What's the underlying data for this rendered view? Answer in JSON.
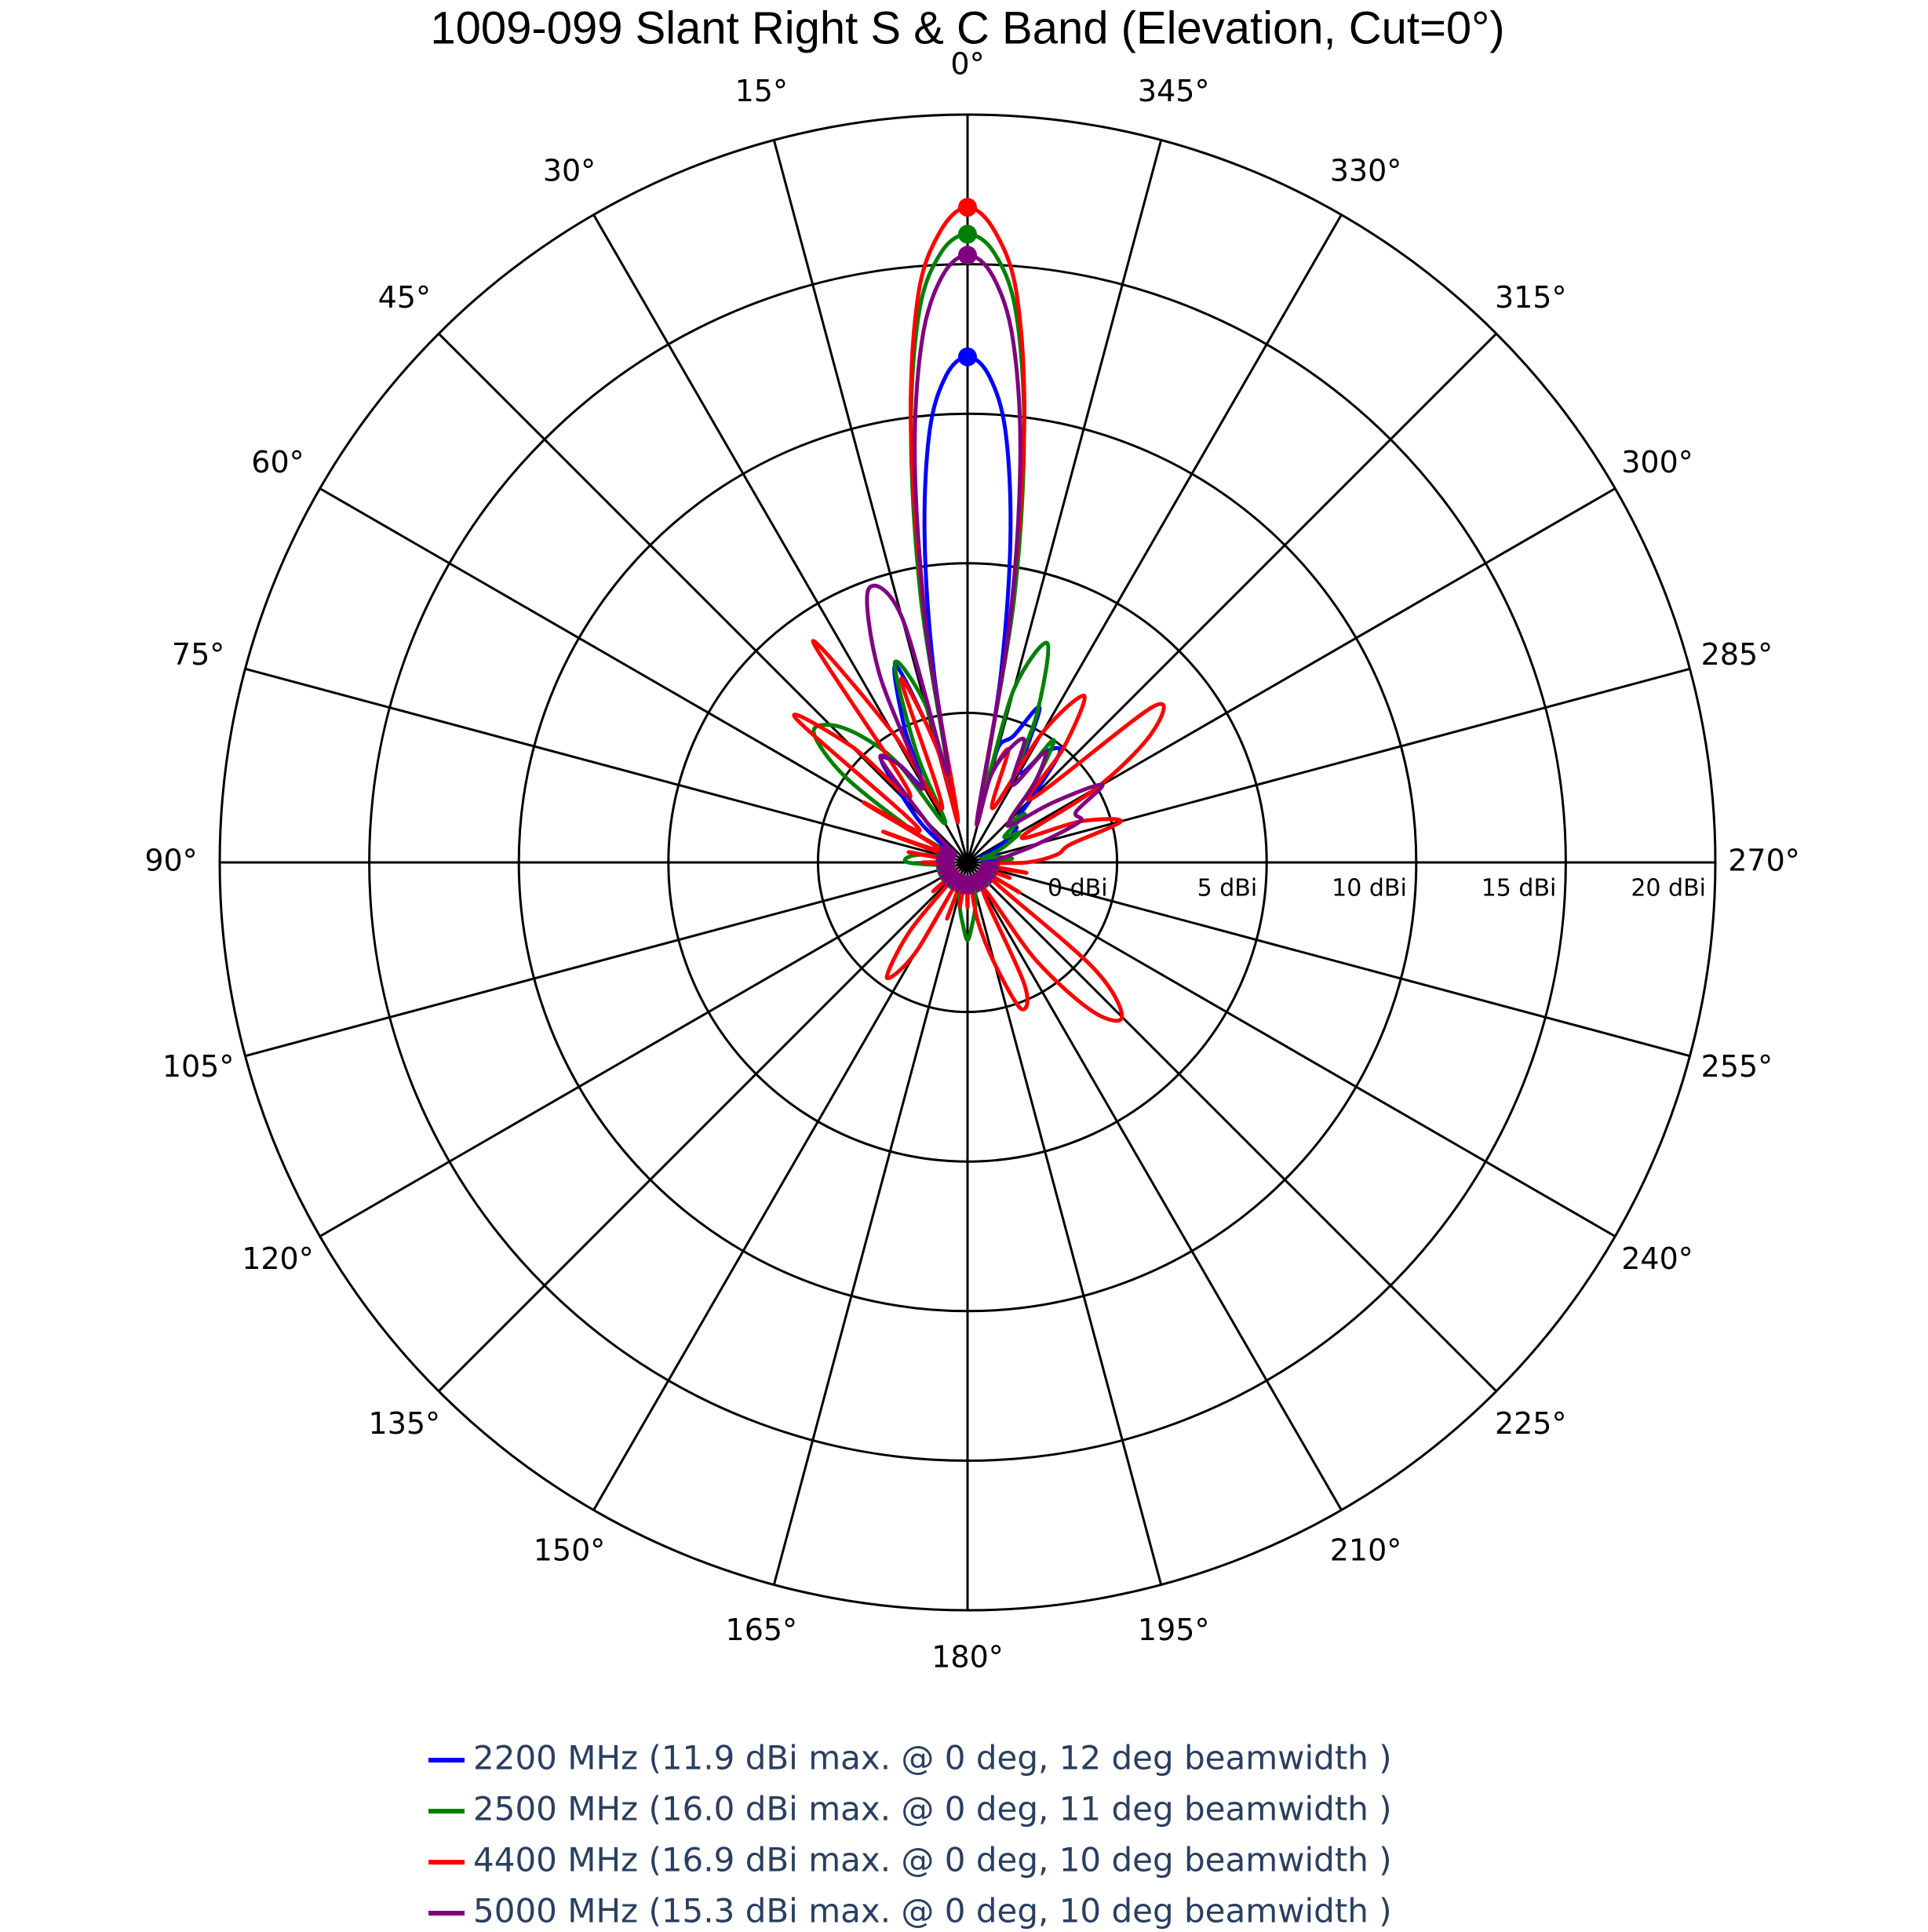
{
  "chart_data": {
    "type": "polar",
    "title": "1009-099 Slant Right S & C Band (Elevation, Cut=0°)",
    "direction": "counterclockwise",
    "rotation": 90,
    "rlim": [
      -5,
      20
    ],
    "rticks": [
      {
        "value": 0,
        "label": "0 dBi"
      },
      {
        "value": 5,
        "label": "5 dBi"
      },
      {
        "value": 10,
        "label": "10 dBi"
      },
      {
        "value": 15,
        "label": "15 dBi"
      },
      {
        "value": 20,
        "label": "20 dBi"
      }
    ],
    "thetaticks": [
      {
        "value": 0,
        "label": "0°"
      },
      {
        "value": 15,
        "label": "15°"
      },
      {
        "value": 30,
        "label": "30°"
      },
      {
        "value": 45,
        "label": "45°"
      },
      {
        "value": 60,
        "label": "60°"
      },
      {
        "value": 75,
        "label": "75°"
      },
      {
        "value": 90,
        "label": "90°"
      },
      {
        "value": 105,
        "label": "105°"
      },
      {
        "value": 120,
        "label": "120°"
      },
      {
        "value": 135,
        "label": "135°"
      },
      {
        "value": 150,
        "label": "150°"
      },
      {
        "value": 165,
        "label": "165°"
      },
      {
        "value": 180,
        "label": "180°"
      },
      {
        "value": 195,
        "label": "195°"
      },
      {
        "value": 210,
        "label": "210°"
      },
      {
        "value": 225,
        "label": "225°"
      },
      {
        "value": 240,
        "label": "240°"
      },
      {
        "value": 255,
        "label": "255°"
      },
      {
        "value": 270,
        "label": "270°"
      },
      {
        "value": 285,
        "label": "285°"
      },
      {
        "value": 300,
        "label": "300°"
      },
      {
        "value": 315,
        "label": "315°"
      },
      {
        "value": 330,
        "label": "330°"
      },
      {
        "value": 345,
        "label": "345°"
      }
    ],
    "theta": [
      0,
      2.5,
      5,
      7.5,
      10,
      12.5,
      15,
      20,
      25,
      30,
      35,
      40,
      45,
      50,
      55,
      60,
      65,
      70,
      75,
      80,
      85,
      90,
      95,
      100,
      105,
      110,
      115,
      120,
      125,
      130,
      135,
      140,
      145,
      150,
      155,
      160,
      165,
      170,
      175,
      180,
      185,
      190,
      195,
      200,
      205,
      210,
      215,
      220,
      225,
      230,
      235,
      240,
      245,
      250,
      255,
      260,
      265,
      270,
      275,
      280,
      285,
      290,
      295,
      300,
      305,
      310,
      315,
      320,
      325,
      330,
      335,
      340,
      345,
      347.5,
      350,
      352.5,
      355,
      357.5
    ],
    "series": [
      {
        "name": "2200 MHz (11.9 dBi max. @ 0 deg, 12 deg beamwidth )",
        "color": "#0000ff",
        "values": [
          11.9,
          11.3,
          9.5,
          6,
          1.5,
          -3,
          -1,
          2.0,
          0,
          -2,
          -1,
          -0.5,
          -2,
          -3,
          -4,
          -4.5,
          -4,
          -4.5,
          -4,
          -4.5,
          -4,
          -4.5,
          -4,
          -4.5,
          -4,
          -4.5,
          -4,
          -4.5,
          -4,
          -4.5,
          -4,
          -4.5,
          -4,
          -4.5,
          -4,
          -4.5,
          -4,
          -4.5,
          -4,
          -4.5,
          -4,
          -4.5,
          -4,
          -4.5,
          -4,
          -4.5,
          -4,
          -4.5,
          -4,
          -4.5,
          -4,
          -4.5,
          -4,
          -4.5,
          -4,
          -4.5,
          -4,
          -4.5,
          -4,
          -4.5,
          -4,
          -4.5,
          -4,
          -3.5,
          -3,
          -3,
          -2,
          -0.2,
          -0.5,
          -1.5,
          0.7,
          -0.5,
          -1,
          -2.5,
          1.5,
          6,
          9.5,
          11.3
        ]
      },
      {
        "name": "2500 MHz (16.0 dBi max. @ 0 deg, 11 deg beamwidth )",
        "color": "#008000",
        "values": [
          16.0,
          15.4,
          13.5,
          9.5,
          4.0,
          -2,
          0.5,
          2.1,
          -1,
          -3.5,
          -1,
          0.5,
          1.5,
          1.7,
          0,
          -3,
          -4.5,
          -3.5,
          -4.5,
          -3.5,
          -3,
          -3,
          -4,
          -4.5,
          -4,
          -4.5,
          -4,
          -4.5,
          -4,
          -4.5,
          -4,
          -4.5,
          -4,
          -4.5,
          -4,
          -4.5,
          -4,
          -3.5,
          -3,
          -2.4,
          -3,
          -3.5,
          -4,
          -4.5,
          -4,
          -4.5,
          -4,
          -4.5,
          -4,
          -4.5,
          -4,
          -4.5,
          -4,
          -4.5,
          -4,
          -4.5,
          -4,
          -4,
          -3.5,
          -4,
          -4.5,
          -4,
          -3.5,
          -3,
          -3.5,
          -2.5,
          -3,
          -1.5,
          0,
          -2,
          0.5,
          2.8,
          1,
          -2.5,
          4.0,
          9.5,
          13.5,
          15.4
        ]
      },
      {
        "name": "4400 MHz (16.9 dBi max. @ 0 deg, 10 deg beamwidth )",
        "color": "#ff0000",
        "values": [
          16.9,
          16.1,
          14.0,
          9.5,
          3.0,
          -3.5,
          -1,
          1.5,
          -3,
          0,
          4.0,
          -2,
          0.5,
          2.5,
          -3,
          -1,
          -4,
          -2,
          -4.5,
          -3,
          -4.5,
          -3.5,
          -4.5,
          -4,
          -4.5,
          -4,
          -4.5,
          -4,
          -4.5,
          -3.5,
          -4.5,
          -2,
          -0.3,
          -1.5,
          -4.5,
          -3,
          -4.5,
          -3.5,
          -4.5,
          -3.5,
          -4.5,
          -3,
          -1.5,
          0.2,
          -0.5,
          -4,
          -1,
          1.5,
          2.3,
          0.5,
          -4,
          -3,
          -4.5,
          -3.5,
          -4.5,
          -3,
          -4.5,
          -3,
          -2,
          -1.5,
          0.3,
          -1,
          -3,
          0,
          2.5,
          3.1,
          -2,
          0,
          1.8,
          0,
          -3,
          -1,
          -2,
          -3.5,
          3.0,
          9.5,
          14.0,
          16.1
        ]
      },
      {
        "name": "5000 MHz (15.3 dBi max. @ 0 deg, 10 deg beamwidth )",
        "color": "#800080",
        "values": [
          15.3,
          14.6,
          12.5,
          8.5,
          3,
          -2,
          3.5,
          4.7,
          2,
          -2,
          -1,
          -0.5,
          -3,
          -4,
          -4.5,
          -4,
          -4.5,
          -4,
          -4.5,
          -4,
          -4.5,
          -4,
          -4.5,
          -4,
          -4.5,
          -4,
          -4.5,
          -4,
          -4.5,
          -4,
          -4.5,
          -4,
          -4.5,
          -4,
          -4.5,
          -4,
          -4.5,
          -4,
          -4.5,
          -4,
          -4.5,
          -4,
          -4.5,
          -4,
          -4.5,
          -4,
          -4.5,
          -4,
          -4.5,
          -4,
          -4.5,
          -4,
          -4.5,
          -4,
          -4.5,
          -4,
          -4.5,
          -4,
          -4,
          -3.5,
          -2.5,
          -1,
          -1,
          0.2,
          -1.5,
          -3,
          -3,
          -1.5,
          -0.5,
          -2,
          -0.5,
          -1,
          -2,
          -3.5,
          3,
          8.5,
          12.5,
          14.6
        ]
      }
    ]
  }
}
